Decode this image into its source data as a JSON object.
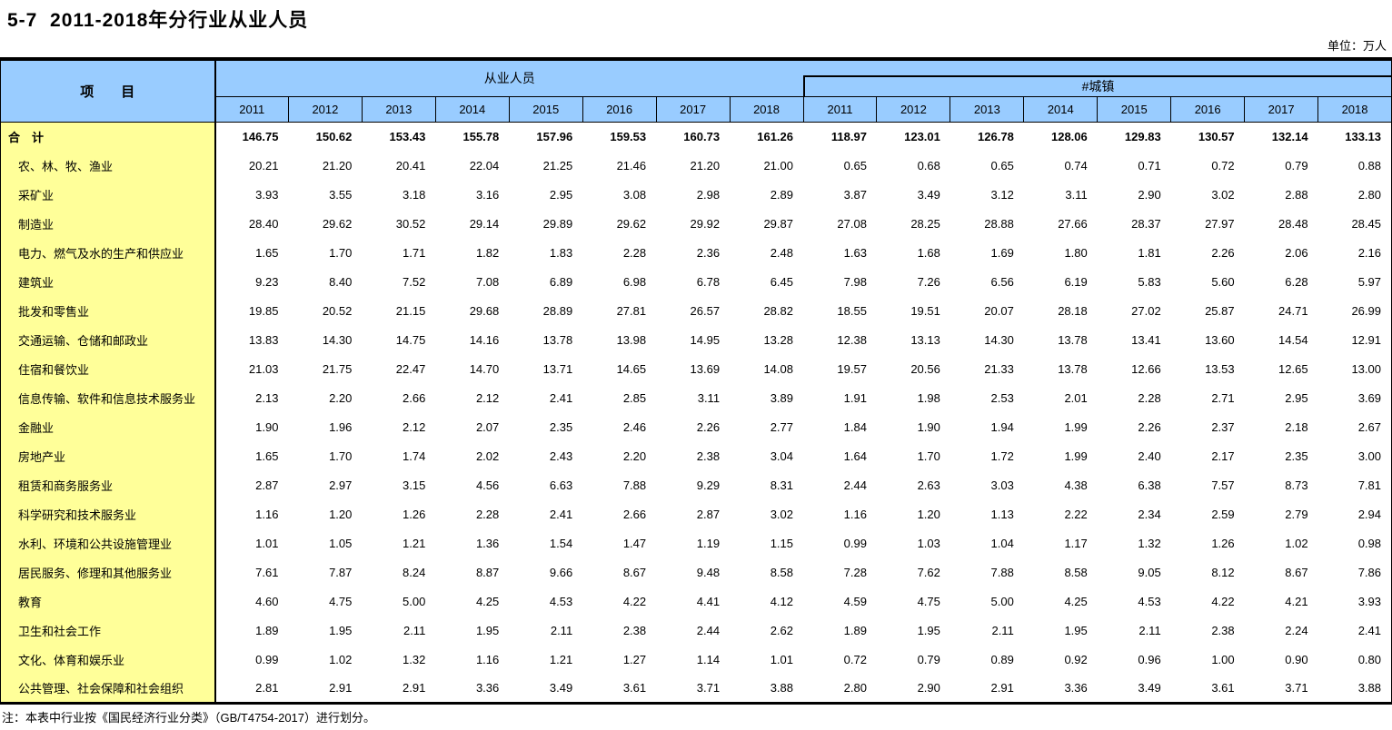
{
  "title": "5-7  2011-2018年分行业从业人员",
  "unit_label": "单位：万人",
  "note": "注：本表中行业按《国民经济行业分类》（GB/T4754-2017）进行划分。",
  "table": {
    "item_header": "项　　目",
    "group_employed_header": "从业人员",
    "group_urban_header": "#城镇",
    "years": [
      "2011",
      "2012",
      "2013",
      "2014",
      "2015",
      "2016",
      "2017",
      "2018"
    ],
    "rows": [
      {
        "label": "合　计",
        "bold": true,
        "employed": [
          "146.75",
          "150.62",
          "153.43",
          "155.78",
          "157.96",
          "159.53",
          "160.73",
          "161.26"
        ],
        "urban": [
          "118.97",
          "123.01",
          "126.78",
          "128.06",
          "129.83",
          "130.57",
          "132.14",
          "133.13"
        ]
      },
      {
        "label": "农、林、牧、渔业",
        "bold": false,
        "employed": [
          "20.21",
          "21.20",
          "20.41",
          "22.04",
          "21.25",
          "21.46",
          "21.20",
          "21.00"
        ],
        "urban": [
          "0.65",
          "0.68",
          "0.65",
          "0.74",
          "0.71",
          "0.72",
          "0.79",
          "0.88"
        ]
      },
      {
        "label": "采矿业",
        "bold": false,
        "employed": [
          "3.93",
          "3.55",
          "3.18",
          "3.16",
          "2.95",
          "3.08",
          "2.98",
          "2.89"
        ],
        "urban": [
          "3.87",
          "3.49",
          "3.12",
          "3.11",
          "2.90",
          "3.02",
          "2.88",
          "2.80"
        ]
      },
      {
        "label": "制造业",
        "bold": false,
        "employed": [
          "28.40",
          "29.62",
          "30.52",
          "29.14",
          "29.89",
          "29.62",
          "29.92",
          "29.87"
        ],
        "urban": [
          "27.08",
          "28.25",
          "28.88",
          "27.66",
          "28.37",
          "27.97",
          "28.48",
          "28.45"
        ]
      },
      {
        "label": "电力、燃气及水的生产和供应业",
        "bold": false,
        "employed": [
          "1.65",
          "1.70",
          "1.71",
          "1.82",
          "1.83",
          "2.28",
          "2.36",
          "2.48"
        ],
        "urban": [
          "1.63",
          "1.68",
          "1.69",
          "1.80",
          "1.81",
          "2.26",
          "2.06",
          "2.16"
        ]
      },
      {
        "label": "建筑业",
        "bold": false,
        "employed": [
          "9.23",
          "8.40",
          "7.52",
          "7.08",
          "6.89",
          "6.98",
          "6.78",
          "6.45"
        ],
        "urban": [
          "7.98",
          "7.26",
          "6.56",
          "6.19",
          "5.83",
          "5.60",
          "6.28",
          "5.97"
        ]
      },
      {
        "label": "批发和零售业",
        "bold": false,
        "employed": [
          "19.85",
          "20.52",
          "21.15",
          "29.68",
          "28.89",
          "27.81",
          "26.57",
          "28.82"
        ],
        "urban": [
          "18.55",
          "19.51",
          "20.07",
          "28.18",
          "27.02",
          "25.87",
          "24.71",
          "26.99"
        ]
      },
      {
        "label": "交通运输、仓储和邮政业",
        "bold": false,
        "employed": [
          "13.83",
          "14.30",
          "14.75",
          "14.16",
          "13.78",
          "13.98",
          "14.95",
          "13.28"
        ],
        "urban": [
          "12.38",
          "13.13",
          "14.30",
          "13.78",
          "13.41",
          "13.60",
          "14.54",
          "12.91"
        ]
      },
      {
        "label": "住宿和餐饮业",
        "bold": false,
        "employed": [
          "21.03",
          "21.75",
          "22.47",
          "14.70",
          "13.71",
          "14.65",
          "13.69",
          "14.08"
        ],
        "urban": [
          "19.57",
          "20.56",
          "21.33",
          "13.78",
          "12.66",
          "13.53",
          "12.65",
          "13.00"
        ]
      },
      {
        "label": "信息传输、软件和信息技术服务业",
        "bold": false,
        "employed": [
          "2.13",
          "2.20",
          "2.66",
          "2.12",
          "2.41",
          "2.85",
          "3.11",
          "3.89"
        ],
        "urban": [
          "1.91",
          "1.98",
          "2.53",
          "2.01",
          "2.28",
          "2.71",
          "2.95",
          "3.69"
        ]
      },
      {
        "label": "金融业",
        "bold": false,
        "employed": [
          "1.90",
          "1.96",
          "2.12",
          "2.07",
          "2.35",
          "2.46",
          "2.26",
          "2.77"
        ],
        "urban": [
          "1.84",
          "1.90",
          "1.94",
          "1.99",
          "2.26",
          "2.37",
          "2.18",
          "2.67"
        ]
      },
      {
        "label": "房地产业",
        "bold": false,
        "employed": [
          "1.65",
          "1.70",
          "1.74",
          "2.02",
          "2.43",
          "2.20",
          "2.38",
          "3.04"
        ],
        "urban": [
          "1.64",
          "1.70",
          "1.72",
          "1.99",
          "2.40",
          "2.17",
          "2.35",
          "3.00"
        ]
      },
      {
        "label": "租赁和商务服务业",
        "bold": false,
        "employed": [
          "2.87",
          "2.97",
          "3.15",
          "4.56",
          "6.63",
          "7.88",
          "9.29",
          "8.31"
        ],
        "urban": [
          "2.44",
          "2.63",
          "3.03",
          "4.38",
          "6.38",
          "7.57",
          "8.73",
          "7.81"
        ]
      },
      {
        "label": "科学研究和技术服务业",
        "bold": false,
        "employed": [
          "1.16",
          "1.20",
          "1.26",
          "2.28",
          "2.41",
          "2.66",
          "2.87",
          "3.02"
        ],
        "urban": [
          "1.16",
          "1.20",
          "1.13",
          "2.22",
          "2.34",
          "2.59",
          "2.79",
          "2.94"
        ]
      },
      {
        "label": "水利、环境和公共设施管理业",
        "bold": false,
        "employed": [
          "1.01",
          "1.05",
          "1.21",
          "1.36",
          "1.54",
          "1.47",
          "1.19",
          "1.15"
        ],
        "urban": [
          "0.99",
          "1.03",
          "1.04",
          "1.17",
          "1.32",
          "1.26",
          "1.02",
          "0.98"
        ]
      },
      {
        "label": "居民服务、修理和其他服务业",
        "bold": false,
        "employed": [
          "7.61",
          "7.87",
          "8.24",
          "8.87",
          "9.66",
          "8.67",
          "9.48",
          "8.58"
        ],
        "urban": [
          "7.28",
          "7.62",
          "7.88",
          "8.58",
          "9.05",
          "8.12",
          "8.67",
          "7.86"
        ]
      },
      {
        "label": "教育",
        "bold": false,
        "employed": [
          "4.60",
          "4.75",
          "5.00",
          "4.25",
          "4.53",
          "4.22",
          "4.41",
          "4.12"
        ],
        "urban": [
          "4.59",
          "4.75",
          "5.00",
          "4.25",
          "4.53",
          "4.22",
          "4.21",
          "3.93"
        ]
      },
      {
        "label": "卫生和社会工作",
        "bold": false,
        "employed": [
          "1.89",
          "1.95",
          "2.11",
          "1.95",
          "2.11",
          "2.38",
          "2.44",
          "2.62"
        ],
        "urban": [
          "1.89",
          "1.95",
          "2.11",
          "1.95",
          "2.11",
          "2.38",
          "2.24",
          "2.41"
        ]
      },
      {
        "label": "文化、体育和娱乐业",
        "bold": false,
        "employed": [
          "0.99",
          "1.02",
          "1.32",
          "1.16",
          "1.21",
          "1.27",
          "1.14",
          "1.01"
        ],
        "urban": [
          "0.72",
          "0.79",
          "0.89",
          "0.92",
          "0.96",
          "1.00",
          "0.90",
          "0.80"
        ]
      },
      {
        "label": "公共管理、社会保障和社会组织",
        "bold": false,
        "employed": [
          "2.81",
          "2.91",
          "2.91",
          "3.36",
          "3.49",
          "3.61",
          "3.71",
          "3.88"
        ],
        "urban": [
          "2.80",
          "2.90",
          "2.91",
          "3.36",
          "3.49",
          "3.61",
          "3.71",
          "3.88"
        ]
      }
    ]
  },
  "colors": {
    "header_bg": "#99CCFF",
    "item_column_bg": "#FFFF99",
    "border": "#000000",
    "text": "#000000",
    "page_bg": "#FFFFFF"
  }
}
